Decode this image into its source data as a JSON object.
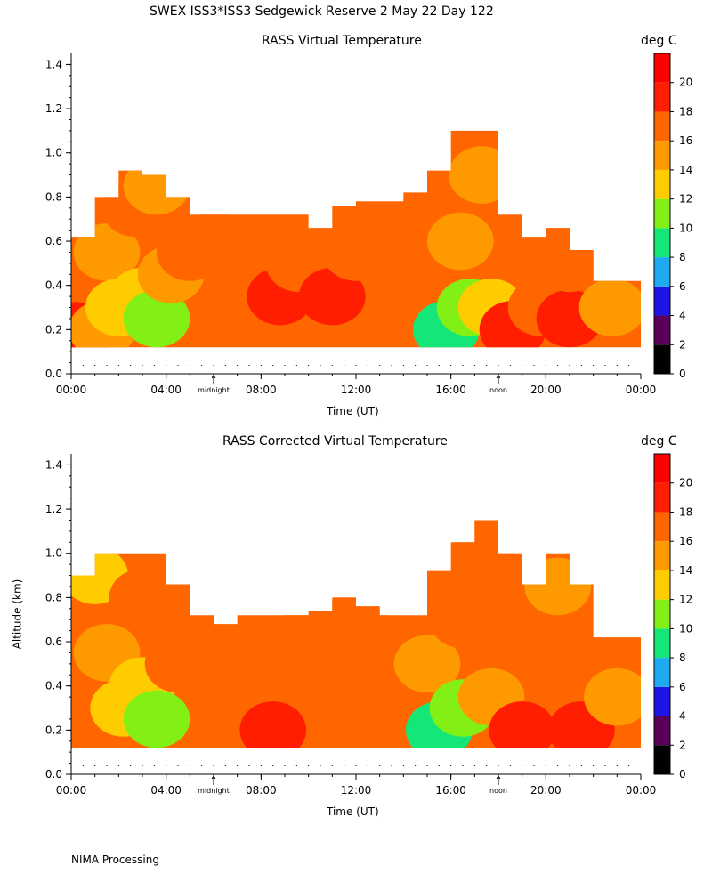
{
  "page_title": "SWEX ISS3*ISS3 Sedgewick Reserve   2 May 22 Day 122",
  "footer": "NIMA Processing",
  "colors": {
    "scale": [
      "#000000",
      "#5a005a",
      "#1e14e6",
      "#1eaaf0",
      "#14e678",
      "#82f014",
      "#ffcc00",
      "#ff9900",
      "#ff6600",
      "#ff1e00",
      "#ff0000"
    ]
  },
  "chart_data": [
    {
      "type": "heatmap",
      "title": "RASS Virtual Temperature",
      "xlabel": "Time (UT)",
      "ylabel": "",
      "x_ticks": [
        "00:00",
        "04:00",
        "08:00",
        "12:00",
        "16:00",
        "20:00",
        "00:00"
      ],
      "xlim": [
        0,
        24
      ],
      "y_ticks": [
        "0.0",
        "0.2",
        "0.4",
        "0.6",
        "0.8",
        "1.0",
        "1.2",
        "1.4"
      ],
      "ylim": [
        0,
        1.45
      ],
      "markers": [
        {
          "label": "midnight",
          "time": 6
        },
        {
          "label": "noon",
          "time": 18
        }
      ],
      "colorbar": {
        "unit": "deg C",
        "ticks": [
          "0",
          "2",
          "4",
          "6",
          "8",
          "10",
          "12",
          "14",
          "16",
          "18",
          "20"
        ],
        "range": [
          0,
          22
        ]
      },
      "coverage": [
        [
          0.5,
          0.62
        ],
        [
          1.5,
          0.8
        ],
        [
          2.5,
          0.92
        ],
        [
          3.5,
          0.9
        ],
        [
          4.5,
          0.8
        ],
        [
          5.5,
          0.72
        ],
        [
          6.5,
          0.72
        ],
        [
          7.5,
          0.72
        ],
        [
          8.5,
          0.72
        ],
        [
          9.5,
          0.72
        ],
        [
          10.5,
          0.66
        ],
        [
          11.5,
          0.76
        ],
        [
          12.5,
          0.78
        ],
        [
          13.5,
          0.78
        ],
        [
          14.5,
          0.82
        ],
        [
          15.5,
          0.92
        ],
        [
          16.5,
          1.1
        ],
        [
          17.5,
          1.1
        ],
        [
          18.5,
          0.72
        ],
        [
          19.5,
          0.62
        ],
        [
          20.5,
          0.66
        ],
        [
          21.5,
          0.56
        ],
        [
          22.5,
          0.42
        ],
        [
          23.5,
          0.42
        ]
      ],
      "cells": [
        {
          "time": 0.5,
          "alt": 0.2,
          "temp": 18
        },
        {
          "time": 0.6,
          "alt": 0.45,
          "temp": 16
        },
        {
          "time": 1.3,
          "alt": 0.2,
          "temp": 15
        },
        {
          "time": 1.5,
          "alt": 0.55,
          "temp": 15
        },
        {
          "time": 2.0,
          "alt": 0.3,
          "temp": 12
        },
        {
          "time": 3.0,
          "alt": 0.35,
          "temp": 12
        },
        {
          "time": 3.6,
          "alt": 0.25,
          "temp": 10
        },
        {
          "time": 4.2,
          "alt": 0.45,
          "temp": 15
        },
        {
          "time": 2.7,
          "alt": 0.75,
          "temp": 16
        },
        {
          "time": 3.6,
          "alt": 0.85,
          "temp": 15
        },
        {
          "time": 5.0,
          "alt": 0.55,
          "temp": 16
        },
        {
          "time": 6.0,
          "alt": 0.6,
          "temp": 16
        },
        {
          "time": 7.5,
          "alt": 0.45,
          "temp": 17
        },
        {
          "time": 8.8,
          "alt": 0.35,
          "temp": 19
        },
        {
          "time": 9.6,
          "alt": 0.5,
          "temp": 16
        },
        {
          "time": 11.0,
          "alt": 0.35,
          "temp": 18
        },
        {
          "time": 12.0,
          "alt": 0.55,
          "temp": 16
        },
        {
          "time": 13.5,
          "alt": 0.5,
          "temp": 16
        },
        {
          "time": 13.0,
          "alt": 0.7,
          "temp": 16
        },
        {
          "time": 15.0,
          "alt": 0.5,
          "temp": 16
        },
        {
          "time": 15.8,
          "alt": 0.2,
          "temp": 9
        },
        {
          "time": 16.8,
          "alt": 0.3,
          "temp": 11
        },
        {
          "time": 16.4,
          "alt": 0.6,
          "temp": 15
        },
        {
          "time": 17.3,
          "alt": 0.9,
          "temp": 15
        },
        {
          "time": 17.7,
          "alt": 0.3,
          "temp": 13
        },
        {
          "time": 18.6,
          "alt": 0.2,
          "temp": 19
        },
        {
          "time": 19.8,
          "alt": 0.3,
          "temp": 17
        },
        {
          "time": 21.0,
          "alt": 0.25,
          "temp": 19
        },
        {
          "time": 21.0,
          "alt": 0.5,
          "temp": 16
        },
        {
          "time": 22.8,
          "alt": 0.3,
          "temp": 15
        }
      ]
    },
    {
      "type": "heatmap",
      "title": "RASS Corrected Virtual Temperature",
      "xlabel": "Time (UT)",
      "ylabel": "Altitude (km)",
      "x_ticks": [
        "00:00",
        "04:00",
        "08:00",
        "12:00",
        "16:00",
        "20:00",
        "00:00"
      ],
      "xlim": [
        0,
        24
      ],
      "y_ticks": [
        "0.0",
        "0.2",
        "0.4",
        "0.6",
        "0.8",
        "1.0",
        "1.2",
        "1.4"
      ],
      "ylim": [
        0,
        1.45
      ],
      "markers": [
        {
          "label": "midnight",
          "time": 6
        },
        {
          "label": "noon",
          "time": 18
        }
      ],
      "colorbar": {
        "unit": "deg C",
        "ticks": [
          "0",
          "2",
          "4",
          "6",
          "8",
          "10",
          "12",
          "14",
          "16",
          "18",
          "20"
        ],
        "range": [
          0,
          22
        ]
      },
      "coverage": [
        [
          0.5,
          0.9
        ],
        [
          1.5,
          1.0
        ],
        [
          2.5,
          1.0
        ],
        [
          3.5,
          1.0
        ],
        [
          4.5,
          0.86
        ],
        [
          5.5,
          0.72
        ],
        [
          6.5,
          0.68
        ],
        [
          7.5,
          0.72
        ],
        [
          8.5,
          0.72
        ],
        [
          9.5,
          0.72
        ],
        [
          10.5,
          0.74
        ],
        [
          11.5,
          0.8
        ],
        [
          12.5,
          0.76
        ],
        [
          13.5,
          0.72
        ],
        [
          14.5,
          0.72
        ],
        [
          15.5,
          0.92
        ],
        [
          16.5,
          1.05
        ],
        [
          17.5,
          1.15
        ],
        [
          18.5,
          1.0
        ],
        [
          19.5,
          0.86
        ],
        [
          20.5,
          1.0
        ],
        [
          21.5,
          0.86
        ],
        [
          22.5,
          0.62
        ],
        [
          23.5,
          0.62
        ]
      ],
      "cells": [
        {
          "time": 0.5,
          "alt": 0.25,
          "temp": 16
        },
        {
          "time": 1.0,
          "alt": 0.9,
          "temp": 13
        },
        {
          "time": 1.5,
          "alt": 0.55,
          "temp": 15
        },
        {
          "time": 2.2,
          "alt": 0.3,
          "temp": 12
        },
        {
          "time": 3.0,
          "alt": 0.4,
          "temp": 12
        },
        {
          "time": 3.6,
          "alt": 0.25,
          "temp": 10
        },
        {
          "time": 3.0,
          "alt": 0.8,
          "temp": 16
        },
        {
          "time": 4.5,
          "alt": 0.5,
          "temp": 16
        },
        {
          "time": 6.0,
          "alt": 0.5,
          "temp": 16
        },
        {
          "time": 7.5,
          "alt": 0.5,
          "temp": 16
        },
        {
          "time": 8.5,
          "alt": 0.2,
          "temp": 18
        },
        {
          "time": 9.5,
          "alt": 0.6,
          "temp": 16
        },
        {
          "time": 11.0,
          "alt": 0.45,
          "temp": 16
        },
        {
          "time": 12.0,
          "alt": 0.7,
          "temp": 16
        },
        {
          "time": 13.5,
          "alt": 0.5,
          "temp": 16
        },
        {
          "time": 15.0,
          "alt": 0.5,
          "temp": 15
        },
        {
          "time": 15.5,
          "alt": 0.2,
          "temp": 9
        },
        {
          "time": 16.5,
          "alt": 0.3,
          "temp": 11
        },
        {
          "time": 16.5,
          "alt": 0.7,
          "temp": 16
        },
        {
          "time": 17.5,
          "alt": 1.05,
          "temp": 17
        },
        {
          "time": 17.7,
          "alt": 0.35,
          "temp": 14
        },
        {
          "time": 19.0,
          "alt": 0.2,
          "temp": 19
        },
        {
          "time": 20.0,
          "alt": 0.5,
          "temp": 16
        },
        {
          "time": 20.5,
          "alt": 0.85,
          "temp": 15
        },
        {
          "time": 21.5,
          "alt": 0.2,
          "temp": 19
        },
        {
          "time": 23.0,
          "alt": 0.35,
          "temp": 15
        }
      ]
    }
  ]
}
